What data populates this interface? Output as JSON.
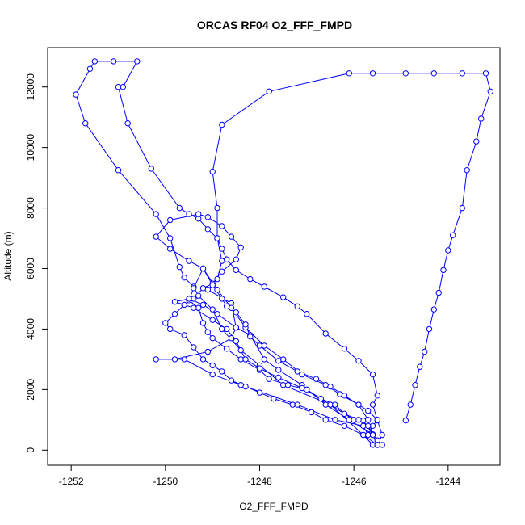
{
  "chart_data": {
    "type": "line",
    "title": "ORCAS RF04 O2_FFF_FMPD",
    "xlabel": "O2_FFF_FMPD",
    "ylabel": "Altitude (m)",
    "xlim": [
      -1252.5,
      -1242.9
    ],
    "ylim": [
      -500,
      13300
    ],
    "x_ticks": [
      -1252,
      -1250,
      -1248,
      -1246,
      -1244
    ],
    "y_ticks": [
      0,
      2000,
      4000,
      6000,
      8000,
      10000,
      12000
    ],
    "grid": false,
    "legend": "none",
    "marker": "open-circle",
    "series_color": "#0000ff",
    "series": [
      {
        "x": [
          -1244.9,
          -1244.8,
          -1244.7,
          -1244.6,
          -1244.5,
          -1244.4,
          -1244.3,
          -1244.2,
          -1244.1,
          -1244.0,
          -1243.9,
          -1243.7,
          -1243.6,
          -1243.4,
          -1243.3,
          -1243.1,
          -1243.2,
          -1243.7,
          -1244.3,
          -1244.9,
          -1245.6,
          -1246.1,
          -1247.8,
          -1248.8,
          -1249.0,
          -1248.9,
          -1248.9,
          -1248.8,
          -1248.9,
          -1249.1,
          -1248.6,
          -1248.5,
          -1248.2,
          -1247.9,
          -1247.6,
          -1247.1,
          -1246.6,
          -1246.1,
          -1245.6,
          -1245.5,
          -1245.4,
          -1245.5,
          -1245.6,
          -1245.8,
          -1246.0,
          -1246.5,
          -1247.5,
          -1248.0,
          -1248.4,
          -1248.8,
          -1249.0,
          -1249.3,
          -1249.4,
          -1249.6,
          -1249.7,
          -1249.9,
          -1250.2,
          -1251.0,
          -1251.7,
          -1251.9,
          -1251.6,
          -1251.5,
          -1251.1,
          -1250.6,
          -1250.9,
          -1251.0,
          -1250.8,
          -1250.3,
          -1249.7,
          -1249.5,
          -1249.3,
          -1249.1,
          -1248.9,
          -1248.8,
          -1248.7,
          -1248.5,
          -1248.2,
          -1247.9,
          -1247.5,
          -1247.2,
          -1247.0,
          -1246.6,
          -1246.2,
          -1245.9,
          -1245.6,
          -1245.5,
          -1245.6,
          -1245.5,
          -1245.4,
          -1245.5,
          -1245.8,
          -1246.5,
          -1247.0,
          -1247.4,
          -1247.8,
          -1248.0,
          -1248.4,
          -1248.7,
          -1249.0,
          -1249.1,
          -1249.2,
          -1249.3,
          -1249.5,
          -1249.4,
          -1249.2,
          -1249.5,
          -1249.9,
          -1250.2,
          -1249.9,
          -1249.3,
          -1249.1,
          -1248.8,
          -1248.6,
          -1248.4,
          -1248.5,
          -1248.8,
          -1249.0,
          -1249.2,
          -1249.4,
          -1249.6,
          -1249.8,
          -1250.0,
          -1249.9,
          -1249.6,
          -1249.4,
          -1249.2,
          -1249.0,
          -1248.8,
          -1248.6,
          -1248.3,
          -1248.0,
          -1247.7,
          -1247.3,
          -1246.9,
          -1246.6,
          -1246.2,
          -1245.8,
          -1245.6,
          -1245.5,
          -1245.6,
          -1245.7,
          -1245.9,
          -1246.3,
          -1246.6,
          -1247.1,
          -1247.5,
          -1247.9,
          -1248.3,
          -1248.6,
          -1248.9,
          -1249.2,
          -1249.0,
          -1248.8,
          -1248.7,
          -1248.5,
          -1248.3,
          -1248.2,
          -1248.0,
          -1247.6,
          -1247.2,
          -1246.8,
          -1246.5,
          -1246.2,
          -1245.9,
          -1245.7,
          -1245.5,
          -1245.6,
          -1245.7,
          -1245.8,
          -1246.4,
          -1247.2,
          -1248.4,
          -1249.0,
          -1249.6,
          -1250.2,
          -1249.8,
          -1249.1,
          -1248.6,
          -1248.5,
          -1248.9,
          -1249.2,
          -1249.5,
          -1249.8,
          -1249.4,
          -1249.0,
          -1248.7,
          -1248.5,
          -1248.3,
          -1248.0,
          -1247.6,
          -1247.1,
          -1246.7,
          -1246.4,
          -1246.2,
          -1245.9,
          -1245.7,
          -1245.6,
          -1245.5
        ],
        "y": [
          980,
          1500,
          2150,
          2750,
          3250,
          4000,
          4650,
          5200,
          5950,
          6600,
          7100,
          8000,
          9250,
          10200,
          10950,
          11850,
          12450,
          12450,
          12450,
          12450,
          12450,
          12450,
          11850,
          10750,
          9200,
          8000,
          7000,
          6250,
          5650,
          5300,
          4850,
          4050,
          3800,
          3000,
          2650,
          2150,
          1500,
          1000,
          520,
          320,
          170,
          320,
          520,
          980,
          1000,
          1500,
          2150,
          2800,
          3300,
          4000,
          4650,
          5100,
          5400,
          5700,
          6050,
          7000,
          7800,
          9250,
          10800,
          11750,
          12600,
          12850,
          12850,
          12850,
          12000,
          12000,
          10800,
          9300,
          8000,
          7800,
          7650,
          7300,
          7000,
          6650,
          6300,
          5950,
          5650,
          5400,
          5050,
          4750,
          4500,
          3850,
          3350,
          2950,
          2500,
          1800,
          1500,
          980,
          500,
          170,
          500,
          1500,
          2000,
          2150,
          2350,
          2650,
          3000,
          3350,
          3700,
          3900,
          4200,
          4700,
          4950,
          5350,
          6000,
          6250,
          6650,
          7050,
          7600,
          7800,
          7700,
          7400,
          7050,
          6700,
          6300,
          5900,
          5500,
          5350,
          5000,
          4800,
          4500,
          4200,
          4000,
          3800,
          3400,
          3000,
          2800,
          2600,
          2300,
          2100,
          1900,
          1700,
          1500,
          1250,
          1000,
          800,
          500,
          170,
          170,
          500,
          1000,
          1500,
          1850,
          2150,
          2500,
          3000,
          3450,
          4050,
          4700,
          5300,
          6000,
          5450,
          5000,
          4750,
          4550,
          4150,
          3750,
          3450,
          2950,
          2600,
          2350,
          2100,
          1800,
          1500,
          1300,
          1000,
          800,
          500,
          800,
          1000,
          1500,
          2150,
          2500,
          3000,
          3000,
          3000,
          3250,
          3700,
          4050,
          4500,
          4800,
          5000,
          4900,
          4700,
          4300,
          4000,
          3600,
          3000,
          2700,
          2400,
          2050,
          1700,
          1500,
          1200,
          1000,
          800,
          500,
          170
        ]
      }
    ]
  }
}
